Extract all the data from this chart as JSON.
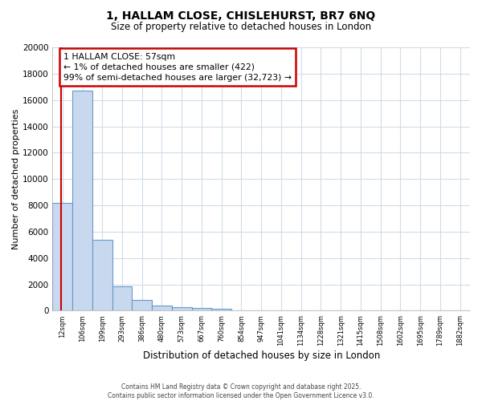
{
  "title1": "1, HALLAM CLOSE, CHISLEHURST, BR7 6NQ",
  "title2": "Size of property relative to detached houses in London",
  "xlabel": "Distribution of detached houses by size in London",
  "ylabel": "Number of detached properties",
  "bar_color": "#c8d8ee",
  "bar_edge_color": "#6699cc",
  "background_color": "#ffffff",
  "fig_background_color": "#ffffff",
  "grid_color": "#d0dce8",
  "categories": [
    "12sqm",
    "106sqm",
    "199sqm",
    "293sqm",
    "386sqm",
    "480sqm",
    "573sqm",
    "667sqm",
    "760sqm",
    "854sqm",
    "947sqm",
    "1041sqm",
    "1134sqm",
    "1228sqm",
    "1321sqm",
    "1415sqm",
    "1508sqm",
    "1602sqm",
    "1695sqm",
    "1789sqm",
    "1882sqm"
  ],
  "values": [
    8200,
    16700,
    5400,
    1850,
    800,
    400,
    250,
    200,
    130,
    0,
    0,
    0,
    0,
    0,
    0,
    0,
    0,
    0,
    0,
    0,
    0
  ],
  "ylim": [
    0,
    20000
  ],
  "yticks": [
    0,
    2000,
    4000,
    6000,
    8000,
    10000,
    12000,
    14000,
    16000,
    18000,
    20000
  ],
  "red_line_x": -0.08,
  "annotation_text": "1 HALLAM CLOSE: 57sqm\n← 1% of detached houses are smaller (422)\n99% of semi-detached houses are larger (32,723) →",
  "annotation_box_color": "#ffffff",
  "annotation_border_color": "#cc0000",
  "footnote": "Contains HM Land Registry data © Crown copyright and database right 2025.\nContains public sector information licensed under the Open Government Licence v3.0.",
  "red_line_color": "#cc0000"
}
